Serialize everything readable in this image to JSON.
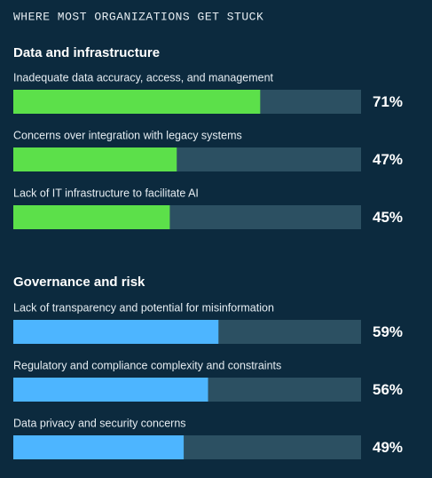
{
  "header": "WHERE MOST ORGANIZATIONS GET STUCK",
  "chart_data": [
    {
      "type": "bar",
      "title": "Data and infrastructure",
      "categories": [
        "Inadequate data accuracy, access, and management",
        "Concerns over integration with legacy systems",
        "Lack of IT infrastructure to facilitate AI"
      ],
      "values": [
        71,
        47,
        45
      ],
      "value_labels": [
        "71%",
        "47%",
        "45%"
      ],
      "color": "#5ce04a",
      "xlim": [
        0,
        100
      ]
    },
    {
      "type": "bar",
      "title": "Governance and risk",
      "categories": [
        "Lack of transparency and potential for misinformation",
        "Regulatory and compliance complexity and constraints",
        "Data privacy and security concerns"
      ],
      "values": [
        59,
        56,
        49
      ],
      "value_labels": [
        "59%",
        "56%",
        "49%"
      ],
      "color": "#4db5ff",
      "xlim": [
        0,
        100
      ]
    }
  ]
}
